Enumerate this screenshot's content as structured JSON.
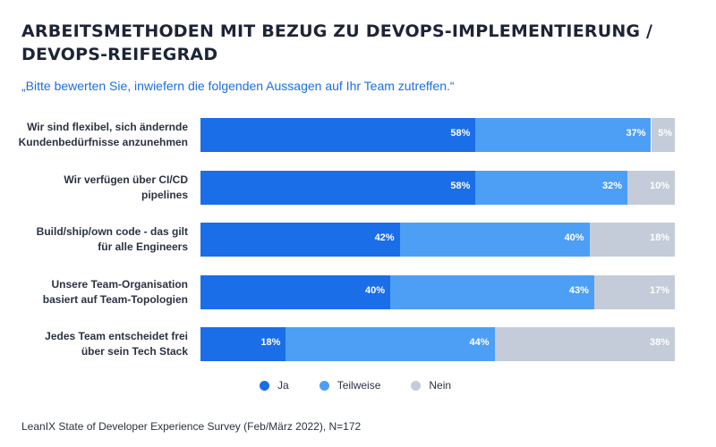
{
  "header": {
    "title_line1": "ARBEITSMETHODEN MIT BEZUG ZU DEVOPS-IMPLEMENTIERUNG /",
    "title_line2": "DEVOPS-REIFEGRAD",
    "subtitle": "„Bitte bewerten Sie, inwiefern die folgenden Aussagen auf Ihr Team zutreffen.“"
  },
  "footer": {
    "source": "LeanIX State of Developer Experience Survey (Feb/März 2022), N=172"
  },
  "colors": {
    "ja": "#1a6ee8",
    "teilweise": "#4d9ff5",
    "nein": "#c3ccd8"
  },
  "chart_data": {
    "type": "bar",
    "orientation": "horizontal",
    "stacked": true,
    "title": "ARBEITSMETHODEN MIT BEZUG ZU DEVOPS-IMPLEMENTIERUNG / DEVOPS-REIFEGRAD",
    "xlim": [
      0,
      100
    ],
    "legend_position": "bottom",
    "categories": [
      [
        "Wir sind flexibel, sich ändernde",
        "Kundenbedürfnisse anzunehmen"
      ],
      [
        "Wir verfügen über CI/CD",
        "pipelines"
      ],
      [
        "Build/ship/own code - das gilt",
        "für alle Engineers"
      ],
      [
        "Unsere Team-Organisation",
        "basiert auf Team-Topologien"
      ],
      [
        "Jedes Team entscheidet frei",
        "über sein Tech Stack"
      ]
    ],
    "series": [
      {
        "name": "Ja",
        "color_key": "ja",
        "values": [
          58,
          58,
          42,
          40,
          18
        ],
        "labels": [
          "58%",
          "58%",
          "42%",
          "40%",
          "18%"
        ]
      },
      {
        "name": "Teilweise",
        "color_key": "teilweise",
        "values": [
          37,
          32,
          40,
          43,
          44
        ],
        "labels": [
          "37%",
          "32%",
          "40%",
          "43%",
          "44%"
        ]
      },
      {
        "name": "Nein",
        "color_key": "nein",
        "values": [
          5,
          10,
          18,
          17,
          38
        ],
        "labels": [
          "5%",
          "10%",
          "18%",
          "17%",
          "38%"
        ]
      }
    ]
  }
}
